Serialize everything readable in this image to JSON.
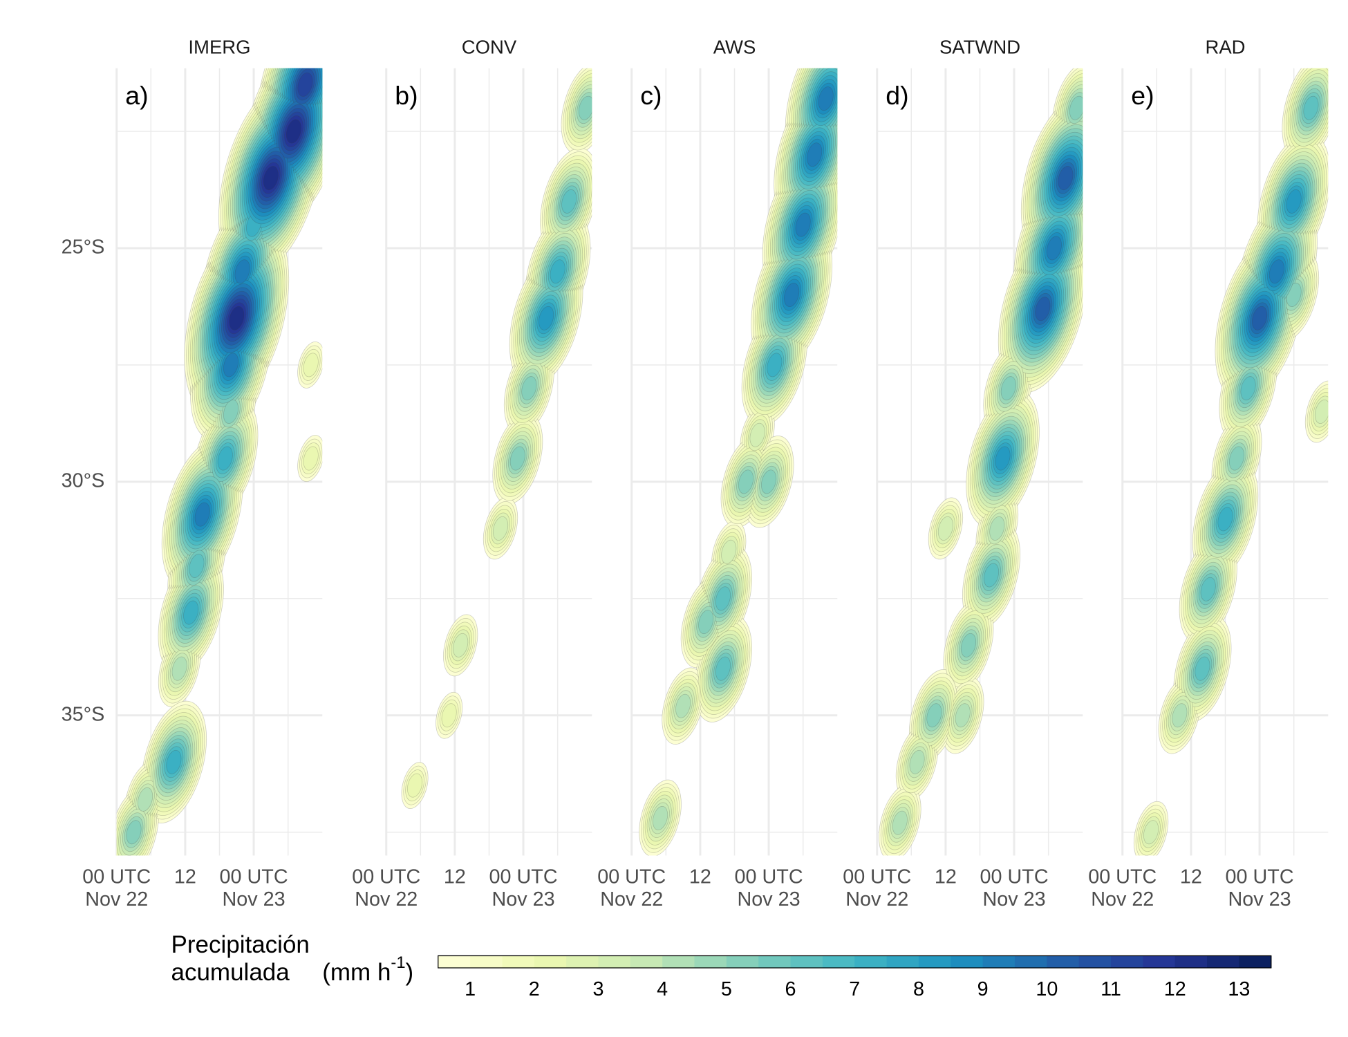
{
  "chart_data": {
    "type": "contour",
    "xlim": [
      0,
      36
    ],
    "xticks": [
      {
        "value": 0,
        "label": [
          "00 UTC",
          "Nov 22"
        ]
      },
      {
        "value": 12,
        "label": [
          "12"
        ]
      },
      {
        "value": 24,
        "label": [
          "00 UTC",
          "Nov 23"
        ]
      }
    ],
    "x_minor": [
      6,
      18,
      30
    ],
    "ylim": [
      -38,
      -21.15
    ],
    "yticks": [
      {
        "value": -25,
        "label": "25°S"
      },
      {
        "value": -30,
        "label": "30°S"
      },
      {
        "value": -35,
        "label": "35°S"
      }
    ],
    "y_minor": [
      -22.5,
      -27.5,
      -32.5,
      -37.5
    ],
    "grid": true,
    "panels": [
      {
        "title": "IMERG",
        "label": "a)",
        "x": [
          33,
          31,
          27,
          24,
          22,
          21,
          20,
          20,
          19,
          15,
          14,
          13,
          11,
          10,
          5,
          3,
          34,
          34
        ],
        "y": [
          -21.5,
          -22.5,
          -23.5,
          -24.5,
          -25.5,
          -26.5,
          -27.5,
          -28.5,
          -29.5,
          -30.7,
          -31.8,
          -32.8,
          -34,
          -36,
          -36.8,
          -37.5,
          -27.5,
          -29.5
        ],
        "values": [
          11,
          12,
          12,
          7,
          9,
          12,
          9,
          5,
          7,
          9,
          6,
          7,
          4,
          7,
          4,
          5,
          2,
          2
        ]
      },
      {
        "title": "CONV",
        "label": "b)",
        "x": [
          35,
          32,
          30,
          28,
          25,
          23,
          20,
          13,
          11,
          5
        ],
        "y": [
          -22,
          -24,
          -25.5,
          -26.5,
          -28,
          -29.5,
          -31,
          -33.5,
          -35,
          -36.5
        ],
        "values": [
          5,
          6,
          7,
          8,
          5,
          5,
          3,
          3,
          2,
          2
        ]
      },
      {
        "title": "AWS",
        "label": "c)",
        "x": [
          34,
          32,
          30,
          28,
          25,
          22,
          20,
          17,
          16,
          13,
          16,
          9,
          5,
          24
        ],
        "y": [
          -21.8,
          -23,
          -24.5,
          -26,
          -27.5,
          -29,
          -30,
          -31.5,
          -32.5,
          -33,
          -34,
          -34.8,
          -37.2,
          -30
        ],
        "values": [
          9,
          9,
          9,
          9,
          7,
          3,
          5,
          3,
          6,
          5,
          6,
          4,
          4,
          5
        ]
      },
      {
        "title": "SATWND",
        "label": "d)",
        "x": [
          35,
          33,
          31,
          29,
          23,
          22,
          21,
          20,
          16,
          15,
          10,
          7,
          4,
          12
        ],
        "y": [
          -22,
          -23.5,
          -25,
          -26.3,
          -28,
          -29.5,
          -31,
          -32,
          -33.5,
          -35,
          -35,
          -36,
          -37.3,
          -31
        ],
        "values": [
          5,
          10,
          9,
          10,
          5,
          8,
          4,
          6,
          5,
          4,
          5,
          4,
          4,
          3
        ]
      },
      {
        "title": "RAD",
        "label": "e)",
        "x": [
          33,
          30,
          27,
          24,
          22,
          20,
          18,
          15,
          14,
          10,
          5,
          30,
          35
        ],
        "y": [
          -22,
          -24,
          -25.5,
          -26.5,
          -28,
          -29.5,
          -30.8,
          -32.3,
          -34,
          -35,
          -37.5,
          -26,
          -28.5
        ],
        "values": [
          6,
          8,
          9,
          10,
          6,
          5,
          7,
          6,
          6,
          4,
          3,
          5,
          3
        ]
      }
    ],
    "legend_title": [
      "Precipitación",
      "acumulada"
    ],
    "unit": [
      "(mm h",
      "-1",
      ")"
    ],
    "colorbar": {
      "lim": [
        0.5,
        13.5
      ],
      "step": 0.5,
      "ticks": [
        1,
        2,
        3,
        4,
        5,
        6,
        7,
        8,
        9,
        10,
        11,
        12,
        13
      ],
      "colors": [
        "#ffffd9",
        "#edf8b1",
        "#c7e9b4",
        "#7fcdbb",
        "#41b6c4",
        "#1d91c0",
        "#225ea8",
        "#253494",
        "#081d58"
      ]
    }
  }
}
